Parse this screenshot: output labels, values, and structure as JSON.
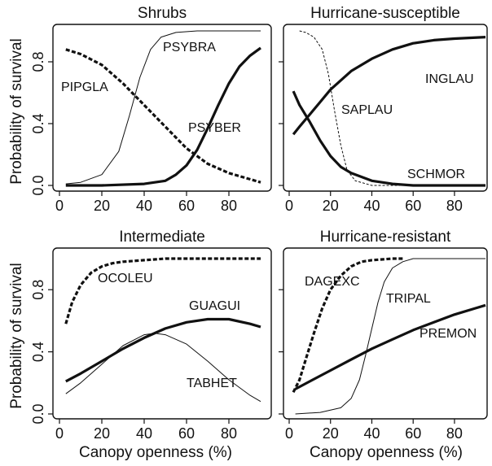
{
  "chart_data": [
    {
      "type": "line",
      "title": "Shrubs",
      "xlim": [
        0,
        95
      ],
      "ylim": [
        0,
        1
      ],
      "xticks": [
        0,
        20,
        40,
        60,
        80
      ],
      "yticks": [
        0.0,
        0.4,
        0.8
      ],
      "ytick_labels": [
        "0.0",
        "0.4",
        "0.8"
      ],
      "series": [
        {
          "name": "PIPGLA",
          "style": "dashed-thick",
          "x": [
            3,
            10,
            20,
            30,
            40,
            50,
            60,
            70,
            80,
            90,
            95
          ],
          "y": [
            0.88,
            0.85,
            0.78,
            0.66,
            0.52,
            0.38,
            0.24,
            0.14,
            0.08,
            0.04,
            0.02
          ]
        },
        {
          "name": "PSYBRA",
          "style": "thin",
          "x": [
            3,
            10,
            20,
            28,
            33,
            38,
            43,
            48,
            55,
            65,
            95
          ],
          "y": [
            0.01,
            0.02,
            0.07,
            0.22,
            0.45,
            0.7,
            0.88,
            0.96,
            0.99,
            1.0,
            1.0
          ]
        },
        {
          "name": "PSYBER",
          "style": "solid-thick",
          "x": [
            3,
            20,
            40,
            50,
            55,
            60,
            65,
            70,
            75,
            80,
            85,
            90,
            95
          ],
          "y": [
            0.0,
            0.0,
            0.01,
            0.03,
            0.07,
            0.13,
            0.23,
            0.37,
            0.52,
            0.66,
            0.77,
            0.84,
            0.89
          ]
        }
      ]
    },
    {
      "type": "line",
      "title": "Hurricane-susceptible",
      "xlim": [
        0,
        95
      ],
      "ylim": [
        0,
        1
      ],
      "xticks": [
        0,
        20,
        40,
        60,
        80
      ],
      "yticks": [
        0.0,
        0.4,
        0.8
      ],
      "ytick_labels": [
        "",
        "",
        ""
      ],
      "series": [
        {
          "name": "INGLAU",
          "style": "solid-thick",
          "x": [
            2,
            5,
            10,
            15,
            20,
            25,
            30,
            40,
            50,
            60,
            70,
            80,
            95
          ],
          "y": [
            0.33,
            0.38,
            0.46,
            0.54,
            0.62,
            0.68,
            0.74,
            0.82,
            0.88,
            0.92,
            0.94,
            0.95,
            0.96
          ]
        },
        {
          "name": "SCHMOR",
          "style": "solid-thick",
          "x": [
            2,
            5,
            10,
            15,
            20,
            25,
            30,
            40,
            50,
            60,
            70,
            95
          ],
          "y": [
            0.61,
            0.52,
            0.41,
            0.29,
            0.19,
            0.12,
            0.08,
            0.03,
            0.01,
            0.0,
            0.0,
            0.0
          ]
        },
        {
          "name": "SAPLAU",
          "style": "thin-dashed",
          "x": [
            5,
            8,
            12,
            16,
            19,
            22,
            25,
            28,
            32,
            40,
            60,
            95
          ],
          "y": [
            1.0,
            0.99,
            0.96,
            0.88,
            0.72,
            0.48,
            0.26,
            0.1,
            0.03,
            0.0,
            0.0,
            0.0
          ]
        }
      ]
    },
    {
      "type": "line",
      "title": "Intermediate",
      "xlim": [
        0,
        95
      ],
      "ylim": [
        0,
        1
      ],
      "xticks": [
        0,
        20,
        40,
        60,
        80
      ],
      "yticks": [
        0.0,
        0.4,
        0.8
      ],
      "ytick_labels": [
        "0.0",
        "0.4",
        "0.8"
      ],
      "series": [
        {
          "name": "OCOLEU",
          "style": "dashed-thick",
          "x": [
            3,
            6,
            10,
            15,
            20,
            25,
            30,
            40,
            50,
            60,
            80,
            95
          ],
          "y": [
            0.58,
            0.72,
            0.83,
            0.91,
            0.95,
            0.97,
            0.98,
            0.99,
            1.0,
            1.0,
            1.0,
            1.0
          ]
        },
        {
          "name": "GUAGUI",
          "style": "solid-thick",
          "x": [
            3,
            10,
            20,
            30,
            40,
            50,
            60,
            70,
            80,
            90,
            95
          ],
          "y": [
            0.21,
            0.26,
            0.34,
            0.42,
            0.49,
            0.55,
            0.59,
            0.61,
            0.61,
            0.58,
            0.56
          ]
        },
        {
          "name": "TABHET",
          "style": "thin",
          "x": [
            3,
            10,
            20,
            30,
            40,
            45,
            50,
            60,
            70,
            80,
            90,
            95
          ],
          "y": [
            0.13,
            0.2,
            0.32,
            0.44,
            0.51,
            0.52,
            0.51,
            0.45,
            0.34,
            0.22,
            0.12,
            0.08
          ]
        }
      ]
    },
    {
      "type": "line",
      "title": "Hurricane-resistant",
      "xlim": [
        0,
        95
      ],
      "ylim": [
        0,
        1
      ],
      "xticks": [
        0,
        20,
        40,
        60,
        80
      ],
      "yticks": [
        0.0,
        0.4,
        0.8
      ],
      "ytick_labels": [
        "",
        "",
        ""
      ],
      "series": [
        {
          "name": "DAGEXC",
          "style": "dashed-thick",
          "x": [
            2,
            5,
            8,
            12,
            16,
            20,
            25,
            30,
            35,
            40,
            50,
            55
          ],
          "y": [
            0.14,
            0.22,
            0.35,
            0.52,
            0.68,
            0.8,
            0.89,
            0.95,
            0.98,
            0.99,
            1.0,
            1.0
          ]
        },
        {
          "name": "TRIPAL",
          "style": "thin",
          "x": [
            3,
            15,
            25,
            30,
            34,
            37,
            40,
            43,
            46,
            50,
            55,
            60,
            95
          ],
          "y": [
            0.0,
            0.01,
            0.04,
            0.1,
            0.22,
            0.38,
            0.55,
            0.72,
            0.85,
            0.94,
            0.98,
            1.0,
            1.0
          ]
        },
        {
          "name": "PREMON",
          "style": "solid-thick",
          "x": [
            3,
            10,
            20,
            30,
            40,
            50,
            60,
            70,
            80,
            90,
            95
          ],
          "y": [
            0.16,
            0.21,
            0.28,
            0.35,
            0.42,
            0.48,
            0.54,
            0.59,
            0.64,
            0.68,
            0.7
          ]
        }
      ]
    }
  ],
  "xlabel": "Canopy openness (%)",
  "ylabel": "Probability of survival"
}
